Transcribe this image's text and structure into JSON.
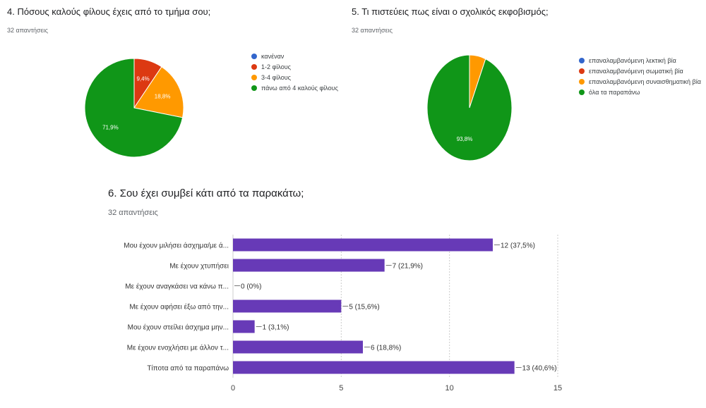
{
  "chart_data": [
    {
      "type": "pie",
      "title": "4. Πόσους καλούς φίλους έχεις από το τμήμα σου;",
      "subtitle": "32 απαντήσεις",
      "legend_position": "right",
      "slices": [
        {
          "label": "κανέναν",
          "value": 0,
          "pct_label": "",
          "color": "#3366cc"
        },
        {
          "label": "1-2 φίλους",
          "value": 9.4,
          "pct_label": "9,4%",
          "color": "#dc3912"
        },
        {
          "label": "3-4 φίλους",
          "value": 18.8,
          "pct_label": "18,8%",
          "color": "#ff9900"
        },
        {
          "label": "πάνω από 4 καλούς φίλους",
          "value": 71.9,
          "pct_label": "71,9%",
          "color": "#109618"
        }
      ]
    },
    {
      "type": "pie",
      "title": "5. Τι πιστεύεις πως είναι ο σχολικός εκφοβισμός;",
      "subtitle": "32 απαντήσεις",
      "legend_position": "right",
      "slices": [
        {
          "label": "επαναλαμβανόμενη λεκτική βία",
          "value": 0,
          "pct_label": "",
          "color": "#3366cc"
        },
        {
          "label": "επαναλαμβανόμενη σωματική βία",
          "value": 0,
          "pct_label": "",
          "color": "#dc3912"
        },
        {
          "label": "επαναλαμβανόμενη συναισθηματική βία",
          "value": 6.2,
          "pct_label": "",
          "color": "#ff9900"
        },
        {
          "label": "όλα τα παραπάνω",
          "value": 93.8,
          "pct_label": "93,8%",
          "color": "#109618"
        }
      ]
    },
    {
      "type": "bar",
      "orientation": "horizontal",
      "title": "6.    Σου έχει συμβεί κάτι από τα παρακάτω;",
      "subtitle": "32 απαντήσεις",
      "color": "#673ab7",
      "xlim": [
        0,
        15
      ],
      "ticks": [
        0,
        5,
        10,
        15
      ],
      "grid": true,
      "categories": [
        "Μου έχουν μιλήσει άσχημα/με ά...",
        "Με έχουν χτυπήσει",
        "Με έχουν αναγκάσει να κάνω π...",
        "Με έχουν αφήσει έξω από την...",
        "Μου έχουν στείλει άσχημα μην...",
        "Με έχουν ενοχλήσει με άλλον τ...",
        "Τίποτα από τα παραπάνω"
      ],
      "values": [
        12,
        7,
        0,
        5,
        1,
        6,
        13
      ],
      "value_labels": [
        "12 (37,5%)",
        "7 (21,9%)",
        "0 (0%)",
        "5 (15,6%)",
        "1 (3,1%)",
        "6 (18,8%)",
        "13 (40,6%)"
      ]
    }
  ]
}
